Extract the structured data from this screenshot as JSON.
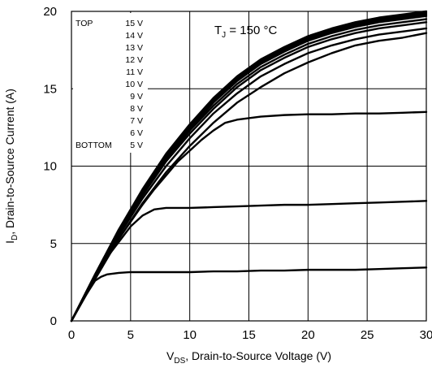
{
  "chart_data": {
    "type": "line",
    "title": "",
    "annotation": {
      "text": "T",
      "sub": "J",
      "rest": " = 150 °C"
    },
    "xlabel": {
      "text": "V",
      "sub": "DS",
      "rest": ", Drain-to-Source Voltage (V)"
    },
    "ylabel": {
      "text": "I",
      "sub": "D",
      "rest": ", Drain-to-Source Current (A)"
    },
    "xlim": [
      0,
      30
    ],
    "ylim": [
      0,
      20
    ],
    "xticks": [
      0,
      5,
      10,
      15,
      20,
      25,
      30
    ],
    "yticks": [
      0,
      5,
      10,
      15,
      20
    ],
    "grid": true,
    "legend": {
      "position": "top-left",
      "top_label": "TOP",
      "bottom_label": "BOTTOM",
      "entries": [
        "15 V",
        "14 V",
        "13 V",
        "12 V",
        "11 V",
        "10 V",
        "9 V",
        "8 V",
        "7 V",
        "6 V",
        "5 V"
      ]
    },
    "series": [
      {
        "x": [
          0,
          2,
          4,
          6,
          8,
          10,
          12,
          14,
          16,
          18,
          20,
          22,
          24,
          26,
          28,
          30
        ],
        "y": [
          0,
          3.0,
          5.9,
          8.5,
          10.8,
          12.7,
          14.4,
          15.8,
          16.9,
          17.7,
          18.4,
          18.9,
          19.3,
          19.6,
          19.8,
          20.0
        ]
      },
      {
        "x": [
          0,
          2,
          4,
          6,
          8,
          10,
          12,
          14,
          16,
          18,
          20,
          22,
          24,
          26,
          28,
          30
        ],
        "y": [
          0,
          3.0,
          5.9,
          8.4,
          10.7,
          12.6,
          14.3,
          15.7,
          16.8,
          17.6,
          18.3,
          18.8,
          19.2,
          19.5,
          19.7,
          19.9
        ]
      },
      {
        "x": [
          0,
          2,
          4,
          6,
          8,
          10,
          12,
          14,
          16,
          18,
          20,
          22,
          24,
          26,
          28,
          30
        ],
        "y": [
          0,
          3.0,
          5.8,
          8.4,
          10.6,
          12.5,
          14.2,
          15.6,
          16.7,
          17.5,
          18.2,
          18.7,
          19.1,
          19.4,
          19.6,
          19.8
        ]
      },
      {
        "x": [
          0,
          2,
          4,
          6,
          8,
          10,
          12,
          14,
          16,
          18,
          20,
          22,
          24,
          26,
          28,
          30
        ],
        "y": [
          0,
          2.9,
          5.8,
          8.3,
          10.5,
          12.4,
          14.1,
          15.5,
          16.6,
          17.4,
          18.1,
          18.6,
          19.0,
          19.3,
          19.5,
          19.7
        ]
      },
      {
        "x": [
          0,
          2,
          4,
          6,
          8,
          10,
          12,
          14,
          16,
          18,
          20,
          22,
          24,
          26,
          28,
          30
        ],
        "y": [
          0,
          2.9,
          5.7,
          8.2,
          10.4,
          12.3,
          13.9,
          15.3,
          16.4,
          17.2,
          17.9,
          18.4,
          18.8,
          19.1,
          19.3,
          19.5
        ]
      },
      {
        "x": [
          0,
          2,
          4,
          6,
          8,
          10,
          12,
          14,
          16,
          18,
          20,
          22,
          24,
          26,
          28,
          30
        ],
        "y": [
          0,
          2.9,
          5.6,
          8.1,
          10.3,
          12.1,
          13.7,
          15.1,
          16.2,
          17.0,
          17.7,
          18.2,
          18.6,
          18.9,
          19.1,
          19.3
        ]
      },
      {
        "x": [
          0,
          2,
          4,
          6,
          8,
          10,
          12,
          14,
          16,
          18,
          20,
          22,
          24,
          26,
          28,
          30
        ],
        "y": [
          0,
          2.8,
          5.5,
          7.9,
          10.0,
          11.8,
          13.4,
          14.7,
          15.8,
          16.6,
          17.3,
          17.8,
          18.2,
          18.5,
          18.7,
          18.9
        ]
      },
      {
        "x": [
          0,
          2,
          4,
          6,
          8,
          10,
          12,
          14,
          16,
          18,
          20,
          22,
          24,
          26,
          28,
          30
        ],
        "y": [
          0,
          2.7,
          5.3,
          7.6,
          9.6,
          11.3,
          12.8,
          14.1,
          15.1,
          16.0,
          16.7,
          17.3,
          17.8,
          18.1,
          18.3,
          18.6
        ]
      },
      {
        "x": [
          0,
          1,
          2,
          3,
          4,
          5,
          6,
          7,
          8,
          9,
          10,
          11,
          12,
          13,
          14,
          16,
          18,
          20,
          22,
          24,
          26,
          28,
          30
        ],
        "y": [
          0,
          1.4,
          2.8,
          4.1,
          5.3,
          6.4,
          7.5,
          8.5,
          9.4,
          10.3,
          11.0,
          11.7,
          12.3,
          12.8,
          13.0,
          13.2,
          13.3,
          13.35,
          13.35,
          13.4,
          13.4,
          13.45,
          13.5
        ]
      },
      {
        "x": [
          0,
          1,
          2,
          3,
          4,
          5,
          6,
          7,
          8,
          10,
          12,
          14,
          16,
          18,
          20,
          22,
          24,
          26,
          28,
          30
        ],
        "y": [
          0,
          1.4,
          2.8,
          4.1,
          5.1,
          6.1,
          6.8,
          7.2,
          7.3,
          7.3,
          7.35,
          7.4,
          7.45,
          7.5,
          7.5,
          7.55,
          7.6,
          7.65,
          7.7,
          7.75
        ]
      },
      {
        "x": [
          0,
          1,
          2,
          2.5,
          3,
          4,
          5,
          6,
          8,
          10,
          12,
          14,
          16,
          18,
          20,
          22,
          24,
          26,
          28,
          30
        ],
        "y": [
          0,
          1.4,
          2.6,
          2.85,
          3.0,
          3.1,
          3.15,
          3.15,
          3.15,
          3.15,
          3.2,
          3.2,
          3.25,
          3.25,
          3.3,
          3.3,
          3.3,
          3.35,
          3.4,
          3.45
        ]
      }
    ],
    "colors": {
      "line": "#000000",
      "grid": "#000000",
      "background": "#ffffff"
    }
  }
}
